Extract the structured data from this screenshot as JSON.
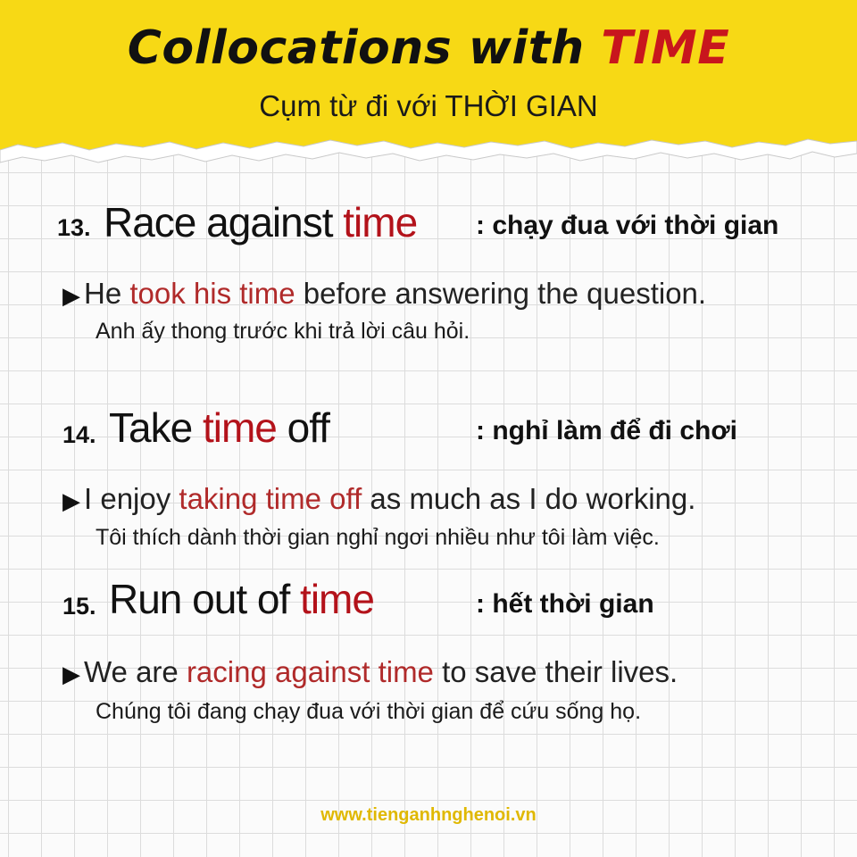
{
  "header": {
    "title_main": "Collocations with ",
    "title_accent": "TIME",
    "subtitle": "Cụm từ đi với THỜI GIAN",
    "banner_color": "#f7d915",
    "accent_color": "#c8161d"
  },
  "items": [
    {
      "number": "13.",
      "phrase_pre": "Race against ",
      "phrase_red": "time",
      "phrase_post": "",
      "meaning": ": chạy đua với thời gian",
      "example_pre": "He ",
      "example_red": "took his time",
      "example_post": " before answering the question.",
      "translation": "Anh ấy thong trước khi trả lời câu hỏi."
    },
    {
      "number": "14.",
      "phrase_pre": "Take ",
      "phrase_red": "time",
      "phrase_post": " off",
      "meaning": ": nghỉ làm để đi chơi",
      "example_pre": "I enjoy ",
      "example_red": "taking time off",
      "example_post": " as much as I do working.",
      "translation": "Tôi thích dành thời gian nghỉ ngơi nhiều như tôi làm việc."
    },
    {
      "number": "15.",
      "phrase_pre": "Run out of ",
      "phrase_red": "time",
      "phrase_post": "",
      "meaning": ": hết thời gian",
      "example_pre": "We are ",
      "example_red": "racing against time",
      "example_post": " to save their lives.",
      "translation": "Chúng tôi đang chạy đua với thời gian để cứu sống họ."
    }
  ],
  "footer": {
    "website": "www.tienganhnghenoi.vn"
  }
}
